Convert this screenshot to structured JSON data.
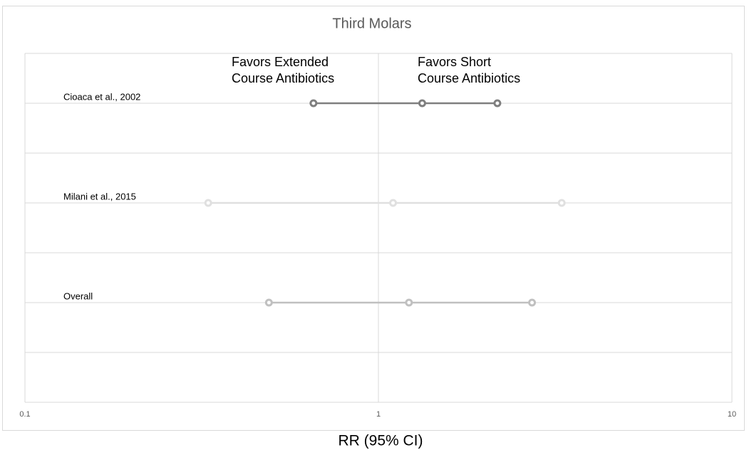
{
  "chart_data": {
    "type": "forest",
    "title": "Third Molars",
    "x_label": "RR (95% CI)",
    "log_x": true,
    "xlim": [
      0.1,
      10
    ],
    "xticks": [
      0.1,
      1,
      10
    ],
    "annotations": [
      [
        "Favors Extended",
        "Course Antibiotics"
      ],
      [
        "Favors Short",
        "Course Antibiotics"
      ]
    ],
    "studies": [
      {
        "name": "Cioaca et al., 2002",
        "color": "#7f7f7f",
        "lower": 0.655,
        "estimate": 1.33,
        "upper": 2.17
      },
      {
        "name": "Milani et al., 2015",
        "color": "#e0e0e0",
        "lower": 0.33,
        "estimate": 1.1,
        "upper": 3.3
      },
      {
        "name": "Overall",
        "color": "#c0c0c0",
        "lower": 0.49,
        "estimate": 1.22,
        "upper": 2.72
      }
    ]
  }
}
